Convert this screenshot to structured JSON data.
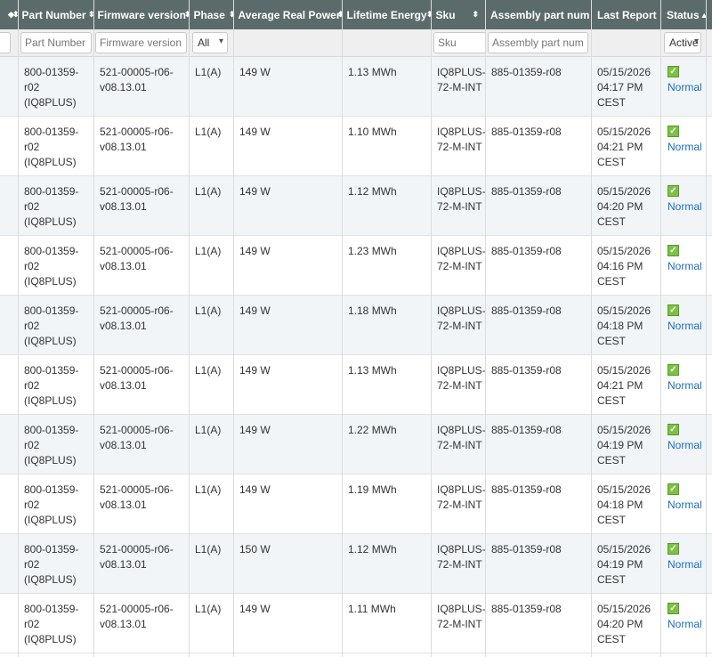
{
  "columns": [
    {
      "label": "Part Number",
      "sortable": true
    },
    {
      "label": "Firmware version",
      "sortable": true
    },
    {
      "label": "Phase",
      "sortable": true
    },
    {
      "label": "Average Real Power",
      "sortable": true
    },
    {
      "label": "Lifetime Energy",
      "sortable": true
    },
    {
      "label": "Sku",
      "sortable": true
    },
    {
      "label": "Assembly part num",
      "sortable": true
    },
    {
      "label": "Last Report",
      "sortable": false
    },
    {
      "label": "Status",
      "sortable": false,
      "sorted": "asc"
    }
  ],
  "filters": {
    "part_number_placeholder": "Part Number",
    "firmware_placeholder": "Firmware version",
    "phase_selected": "All",
    "sku_placeholder": "Sku",
    "assembly_placeholder": "Assembly part num",
    "status_selected": "Active"
  },
  "rows": [
    {
      "part_line1": "800-01359-",
      "part_line2": "r02",
      "part_line3": "(IQ8PLUS)",
      "fw_line1": "521-00005-r06-",
      "fw_line2": "v08.13.01",
      "phase": "L1(A)",
      "power": "149 W",
      "energy": "1.13 MWh",
      "sku_line1": "IQ8PLUS-",
      "sku_line2": "72-M-INT",
      "assembly": "885-01359-r08",
      "date": "05/15/2026",
      "time": "04:17 PM",
      "tz": "CEST",
      "status": "Normal"
    },
    {
      "part_line1": "800-01359-",
      "part_line2": "r02",
      "part_line3": "(IQ8PLUS)",
      "fw_line1": "521-00005-r06-",
      "fw_line2": "v08.13.01",
      "phase": "L1(A)",
      "power": "149 W",
      "energy": "1.10 MWh",
      "sku_line1": "IQ8PLUS-",
      "sku_line2": "72-M-INT",
      "assembly": "885-01359-r08",
      "date": "05/15/2026",
      "time": "04:21 PM",
      "tz": "CEST",
      "status": "Normal"
    },
    {
      "part_line1": "800-01359-",
      "part_line2": "r02",
      "part_line3": "(IQ8PLUS)",
      "fw_line1": "521-00005-r06-",
      "fw_line2": "v08.13.01",
      "phase": "L1(A)",
      "power": "149 W",
      "energy": "1.12 MWh",
      "sku_line1": "IQ8PLUS-",
      "sku_line2": "72-M-INT",
      "assembly": "885-01359-r08",
      "date": "05/15/2026",
      "time": "04:20 PM",
      "tz": "CEST",
      "status": "Normal"
    },
    {
      "part_line1": "800-01359-",
      "part_line2": "r02",
      "part_line3": "(IQ8PLUS)",
      "fw_line1": "521-00005-r06-",
      "fw_line2": "v08.13.01",
      "phase": "L1(A)",
      "power": "149 W",
      "energy": "1.23 MWh",
      "sku_line1": "IQ8PLUS-",
      "sku_line2": "72-M-INT",
      "assembly": "885-01359-r08",
      "date": "05/15/2026",
      "time": "04:16 PM",
      "tz": "CEST",
      "status": "Normal"
    },
    {
      "part_line1": "800-01359-",
      "part_line2": "r02",
      "part_line3": "(IQ8PLUS)",
      "fw_line1": "521-00005-r06-",
      "fw_line2": "v08.13.01",
      "phase": "L1(A)",
      "power": "149 W",
      "energy": "1.18 MWh",
      "sku_line1": "IQ8PLUS-",
      "sku_line2": "72-M-INT",
      "assembly": "885-01359-r08",
      "date": "05/15/2026",
      "time": "04:18 PM",
      "tz": "CEST",
      "status": "Normal"
    },
    {
      "part_line1": "800-01359-",
      "part_line2": "r02",
      "part_line3": "(IQ8PLUS)",
      "fw_line1": "521-00005-r06-",
      "fw_line2": "v08.13.01",
      "phase": "L1(A)",
      "power": "149 W",
      "energy": "1.13 MWh",
      "sku_line1": "IQ8PLUS-",
      "sku_line2": "72-M-INT",
      "assembly": "885-01359-r08",
      "date": "05/15/2026",
      "time": "04:21 PM",
      "tz": "CEST",
      "status": "Normal"
    },
    {
      "part_line1": "800-01359-",
      "part_line2": "r02",
      "part_line3": "(IQ8PLUS)",
      "fw_line1": "521-00005-r06-",
      "fw_line2": "v08.13.01",
      "phase": "L1(A)",
      "power": "149 W",
      "energy": "1.22 MWh",
      "sku_line1": "IQ8PLUS-",
      "sku_line2": "72-M-INT",
      "assembly": "885-01359-r08",
      "date": "05/15/2026",
      "time": "04:19 PM",
      "tz": "CEST",
      "status": "Normal"
    },
    {
      "part_line1": "800-01359-",
      "part_line2": "r02",
      "part_line3": "(IQ8PLUS)",
      "fw_line1": "521-00005-r06-",
      "fw_line2": "v08.13.01",
      "phase": "L1(A)",
      "power": "149 W",
      "energy": "1.19 MWh",
      "sku_line1": "IQ8PLUS-",
      "sku_line2": "72-M-INT",
      "assembly": "885-01359-r08",
      "date": "05/15/2026",
      "time": "04:18 PM",
      "tz": "CEST",
      "status": "Normal"
    },
    {
      "part_line1": "800-01359-",
      "part_line2": "r02",
      "part_line3": "(IQ8PLUS)",
      "fw_line1": "521-00005-r06-",
      "fw_line2": "v08.13.01",
      "phase": "L1(A)",
      "power": "150 W",
      "energy": "1.12 MWh",
      "sku_line1": "IQ8PLUS-",
      "sku_line2": "72-M-INT",
      "assembly": "885-01359-r08",
      "date": "05/15/2026",
      "time": "04:19 PM",
      "tz": "CEST",
      "status": "Normal"
    },
    {
      "part_line1": "800-01359-",
      "part_line2": "r02",
      "part_line3": "(IQ8PLUS)",
      "fw_line1": "521-00005-r06-",
      "fw_line2": "v08.13.01",
      "phase": "L1(A)",
      "power": "149 W",
      "energy": "1.11 MWh",
      "sku_line1": "IQ8PLUS-",
      "sku_line2": "72-M-INT",
      "assembly": "885-01359-r08",
      "date": "05/15/2026",
      "time": "04:20 PM",
      "tz": "CEST",
      "status": "Normal"
    }
  ]
}
